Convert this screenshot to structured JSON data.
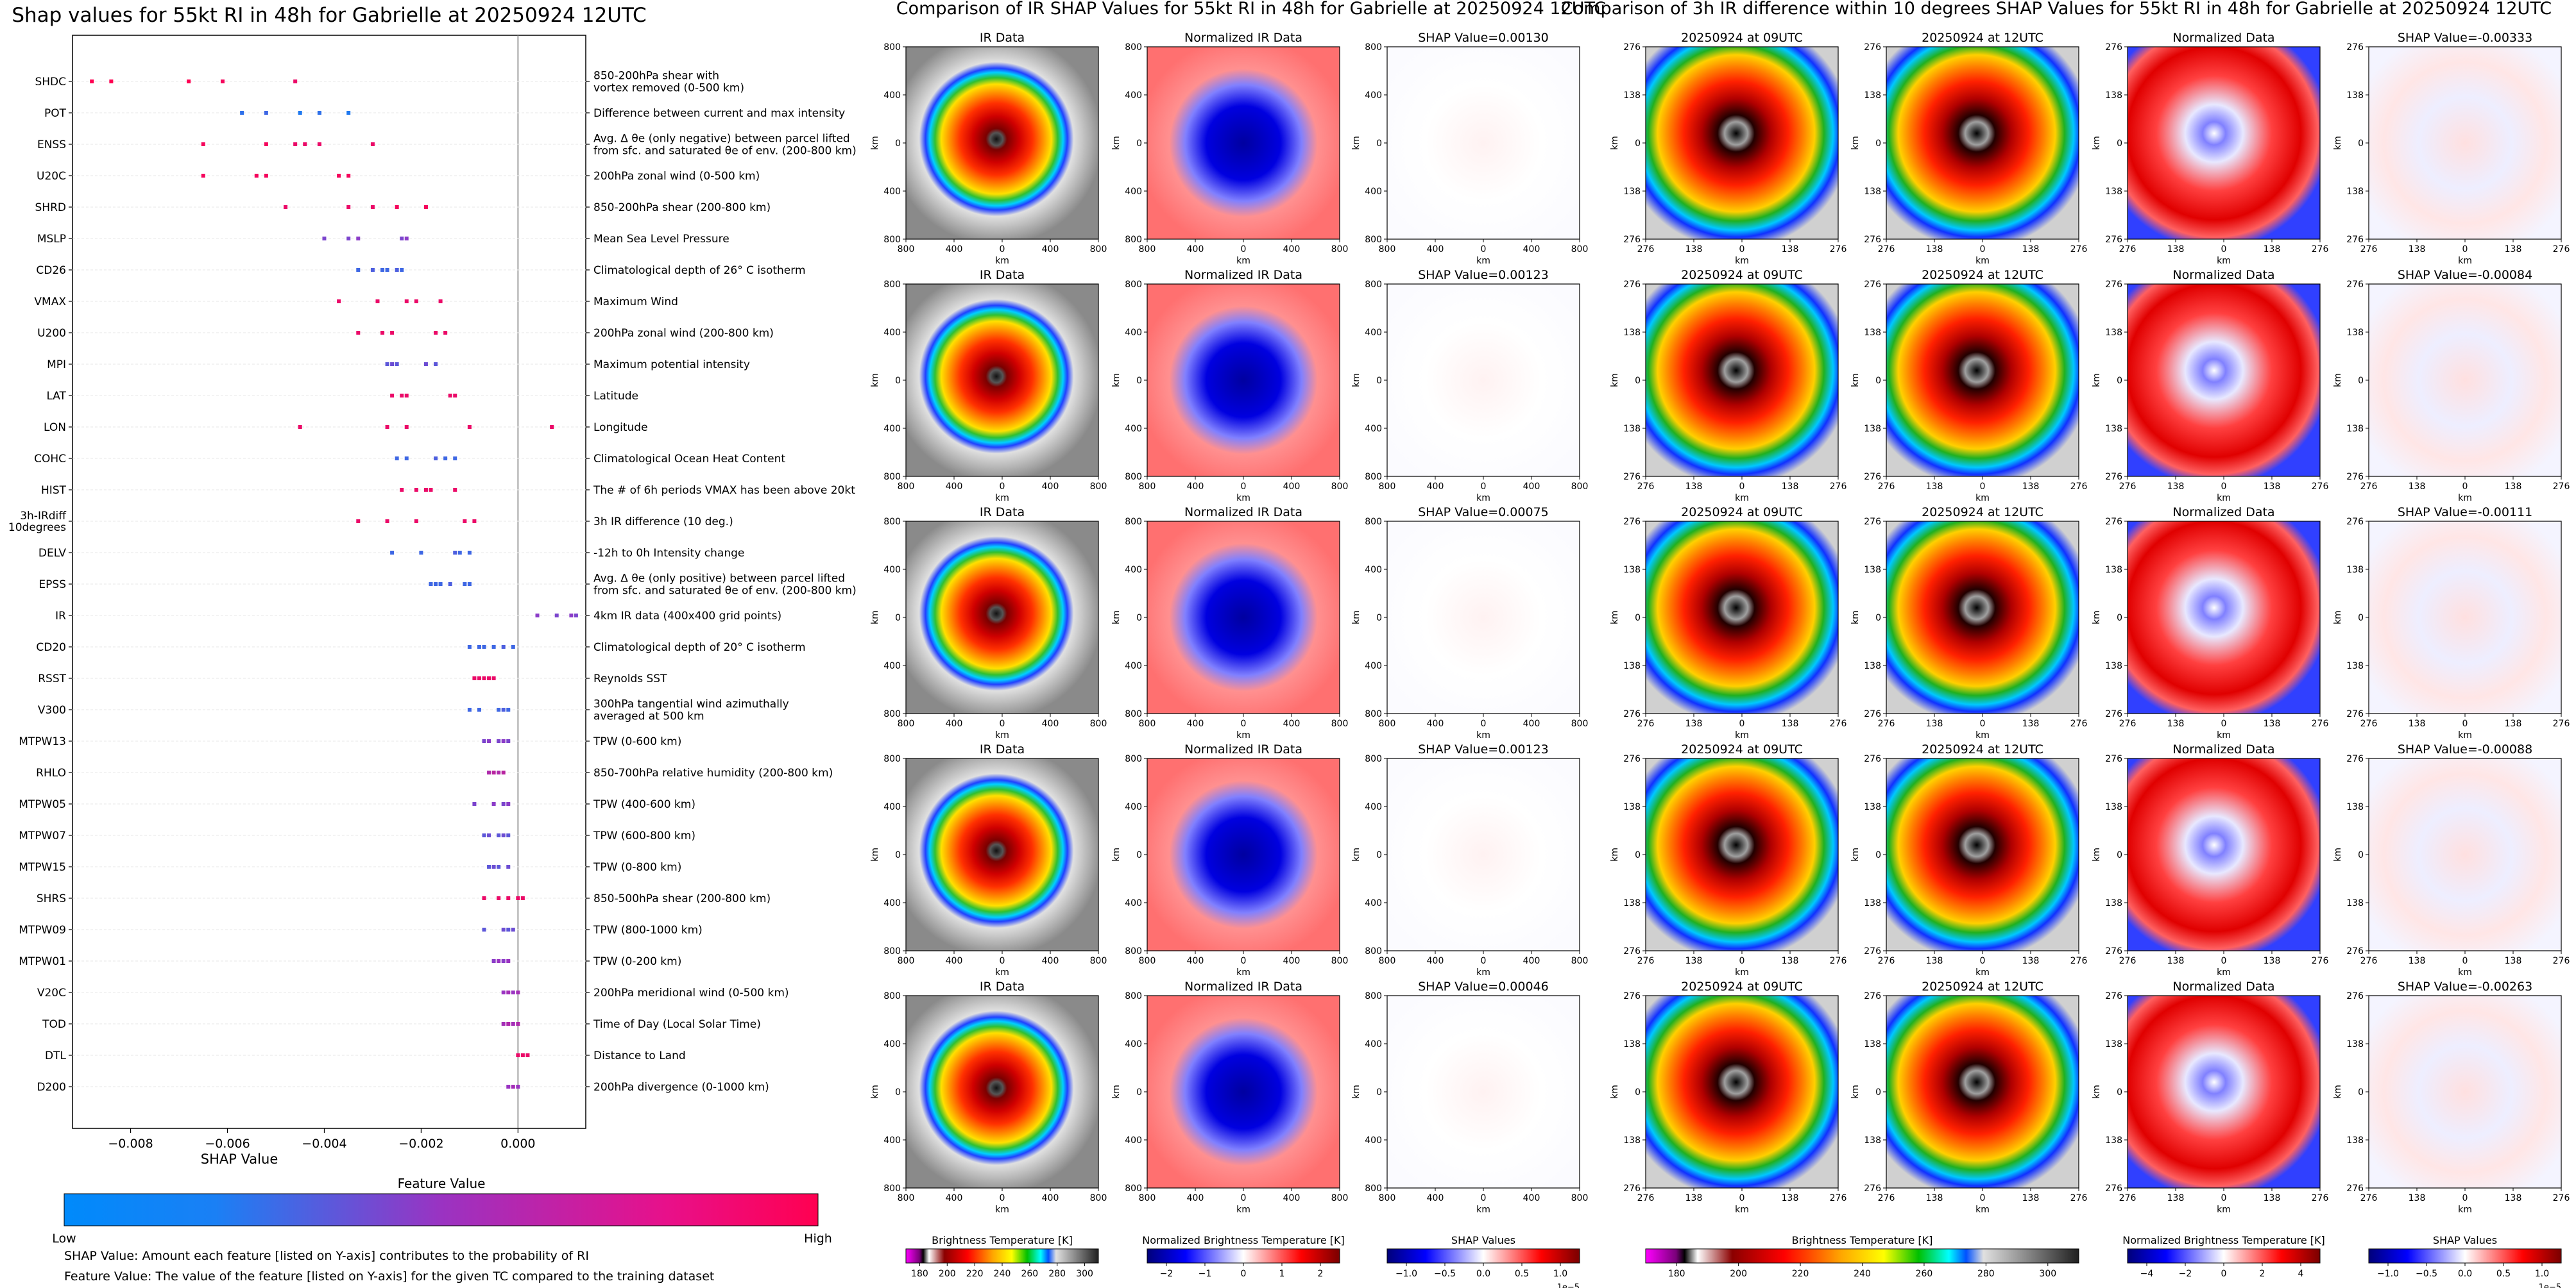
{
  "colors": {
    "low": "#008afb",
    "high": "#ff0051",
    "cbar_blue": "#0000ff",
    "cbar_red": "#ff0000"
  },
  "left_panel": {
    "title": "Shap values for 55kt RI in 48h for Gabrielle at 20250924 12UTC",
    "xlabel": "SHAP Value",
    "xticks": [
      "−0.008",
      "−0.006",
      "−0.004",
      "−0.002",
      "0.000"
    ],
    "colorbar_title": "Feature Value",
    "colorbar_low": "Low",
    "colorbar_high": "High",
    "footnote_1": "SHAP Value: Amount each feature [listed on Y-axis] contributes to the probability of RI",
    "footnote_2": "Feature Value: The value of the feature [listed on Y-axis] for the given TC compared to the training dataset"
  },
  "chart_data": [
    {
      "type": "scatter",
      "title": "Shap values for 55kt RI in 48h for Gabrielle at 20250924 12UTC",
      "xlabel": "SHAP Value",
      "xlim": [
        -0.0092,
        0.0014
      ],
      "xticks": [
        -0.008,
        -0.006,
        -0.004,
        -0.002,
        0.0
      ],
      "features": [
        {
          "name": "SHDC",
          "desc": "850-200hPa shear with\nvortex removed (0-500 km)",
          "points": [
            [
              -0.0088,
              1.0
            ],
            [
              -0.0084,
              1.0
            ],
            [
              -0.0068,
              1.0
            ],
            [
              -0.0061,
              0.95
            ],
            [
              -0.0046,
              0.9
            ]
          ]
        },
        {
          "name": "POT",
          "desc": "Difference between current and max intensity",
          "points": [
            [
              -0.0057,
              0.15
            ],
            [
              -0.0052,
              0.2
            ],
            [
              -0.0045,
              0.1
            ],
            [
              -0.0041,
              0.15
            ],
            [
              -0.0035,
              0.1
            ]
          ]
        },
        {
          "name": "ENSS",
          "desc": "Avg. Δ θe (only negative) between parcel lifted\nfrom sfc. and saturated θe of env. (200-800 km)",
          "points": [
            [
              -0.0065,
              0.95
            ],
            [
              -0.0052,
              0.95
            ],
            [
              -0.0046,
              0.9
            ],
            [
              -0.0044,
              0.9
            ],
            [
              -0.0041,
              0.9
            ],
            [
              -0.003,
              0.9
            ]
          ]
        },
        {
          "name": "U20C",
          "desc": "200hPa zonal wind (0-500 km)",
          "points": [
            [
              -0.0065,
              0.95
            ],
            [
              -0.0054,
              0.95
            ],
            [
              -0.0052,
              0.95
            ],
            [
              -0.0037,
              0.95
            ],
            [
              -0.0035,
              0.95
            ]
          ]
        },
        {
          "name": "SHRD",
          "desc": "850-200hPa shear (200-800 km)",
          "points": [
            [
              -0.0048,
              0.9
            ],
            [
              -0.0035,
              0.9
            ],
            [
              -0.003,
              0.9
            ],
            [
              -0.0025,
              0.95
            ],
            [
              -0.0019,
              0.95
            ]
          ]
        },
        {
          "name": "MSLP",
          "desc": "Mean Sea Level Pressure",
          "points": [
            [
              -0.004,
              0.4
            ],
            [
              -0.0035,
              0.4
            ],
            [
              -0.0033,
              0.45
            ],
            [
              -0.0024,
              0.4
            ],
            [
              -0.0023,
              0.45
            ]
          ]
        },
        {
          "name": "CD26",
          "desc": "Climatological depth of 26° C isotherm",
          "points": [
            [
              -0.0033,
              0.2
            ],
            [
              -0.003,
              0.25
            ],
            [
              -0.0028,
              0.2
            ],
            [
              -0.0027,
              0.2
            ],
            [
              -0.0025,
              0.25
            ],
            [
              -0.0024,
              0.2
            ]
          ]
        },
        {
          "name": "VMAX",
          "desc": "Maximum Wind",
          "points": [
            [
              -0.0037,
              0.9
            ],
            [
              -0.0029,
              0.9
            ],
            [
              -0.0023,
              0.9
            ],
            [
              -0.0021,
              0.9
            ],
            [
              -0.0016,
              0.9
            ]
          ]
        },
        {
          "name": "U200",
          "desc": "200hPa zonal wind (200-800 km)",
          "points": [
            [
              -0.0033,
              0.9
            ],
            [
              -0.0028,
              0.9
            ],
            [
              -0.0026,
              0.9
            ],
            [
              -0.0017,
              0.9
            ],
            [
              -0.0015,
              0.9
            ]
          ]
        },
        {
          "name": "MPI",
          "desc": "Maximum potential intensity",
          "points": [
            [
              -0.0027,
              0.3
            ],
            [
              -0.0026,
              0.35
            ],
            [
              -0.0025,
              0.3
            ],
            [
              -0.0019,
              0.35
            ],
            [
              -0.0017,
              0.3
            ]
          ]
        },
        {
          "name": "LAT",
          "desc": "Latitude",
          "points": [
            [
              -0.0026,
              0.9
            ],
            [
              -0.0024,
              0.9
            ],
            [
              -0.0023,
              0.9
            ],
            [
              -0.0014,
              0.9
            ],
            [
              -0.0013,
              0.9
            ]
          ]
        },
        {
          "name": "LON",
          "desc": "Longitude",
          "points": [
            [
              -0.0045,
              0.9
            ],
            [
              -0.0027,
              0.9
            ],
            [
              -0.0023,
              0.9
            ],
            [
              -0.001,
              0.9
            ],
            [
              0.0007,
              0.9
            ]
          ]
        },
        {
          "name": "COHC",
          "desc": "Climatological Ocean Heat Content",
          "points": [
            [
              -0.0025,
              0.2
            ],
            [
              -0.0023,
              0.2
            ],
            [
              -0.0017,
              0.25
            ],
            [
              -0.0015,
              0.2
            ],
            [
              -0.0013,
              0.2
            ]
          ]
        },
        {
          "name": "HIST",
          "desc": "The # of 6h periods VMAX has been above 20kt",
          "points": [
            [
              -0.0024,
              0.9
            ],
            [
              -0.0021,
              0.9
            ],
            [
              -0.0019,
              0.9
            ],
            [
              -0.0018,
              0.9
            ],
            [
              -0.0013,
              0.9
            ]
          ]
        },
        {
          "name": "3h-IRdiff\n10degrees",
          "desc": "3h IR difference (10 deg.)",
          "points": [
            [
              -0.0033,
              0.9
            ],
            [
              -0.0027,
              0.9
            ],
            [
              -0.0021,
              0.9
            ],
            [
              -0.0011,
              0.9
            ],
            [
              -0.0009,
              0.9
            ]
          ]
        },
        {
          "name": "DELV",
          "desc": "-12h to 0h Intensity change",
          "points": [
            [
              -0.0026,
              0.2
            ],
            [
              -0.002,
              0.2
            ],
            [
              -0.0013,
              0.25
            ],
            [
              -0.0012,
              0.2
            ],
            [
              -0.001,
              0.2
            ]
          ]
        },
        {
          "name": "EPSS",
          "desc": "Avg. Δ θe (only positive) between parcel lifted\nfrom sfc. and saturated θe of env. (200-800 km)",
          "points": [
            [
              -0.0018,
              0.2
            ],
            [
              -0.0017,
              0.2
            ],
            [
              -0.0016,
              0.2
            ],
            [
              -0.0014,
              0.25
            ],
            [
              -0.0011,
              0.2
            ],
            [
              -0.001,
              0.2
            ]
          ]
        },
        {
          "name": "IR",
          "desc": "4km IR data (400x400 grid points)",
          "points": [
            [
              0.0004,
              0.45
            ],
            [
              0.0008,
              0.4
            ],
            [
              0.0011,
              0.45
            ],
            [
              0.0012,
              0.4
            ]
          ]
        },
        {
          "name": "CD20",
          "desc": "Climatological depth of 20° C isotherm",
          "points": [
            [
              -0.001,
              0.2
            ],
            [
              -0.0008,
              0.2
            ],
            [
              -0.0007,
              0.2
            ],
            [
              -0.0005,
              0.2
            ],
            [
              -0.0003,
              0.25
            ],
            [
              -0.0001,
              0.2
            ]
          ]
        },
        {
          "name": "RSST",
          "desc": "Reynolds SST",
          "points": [
            [
              -0.0009,
              0.9
            ],
            [
              -0.0008,
              0.9
            ],
            [
              -0.0007,
              0.9
            ],
            [
              -0.0006,
              0.9
            ],
            [
              -0.0005,
              0.9
            ]
          ]
        },
        {
          "name": "V300",
          "desc": "300hPa tangential wind azimuthally\naveraged at 500 km",
          "points": [
            [
              -0.001,
              0.2
            ],
            [
              -0.0008,
              0.2
            ],
            [
              -0.0004,
              0.2
            ],
            [
              -0.0003,
              0.25
            ],
            [
              -0.0002,
              0.2
            ]
          ]
        },
        {
          "name": "MTPW13",
          "desc": "TPW (0-600 km)",
          "points": [
            [
              -0.0007,
              0.4
            ],
            [
              -0.0006,
              0.45
            ],
            [
              -0.0004,
              0.4
            ],
            [
              -0.0003,
              0.45
            ],
            [
              -0.0002,
              0.4
            ]
          ]
        },
        {
          "name": "RHLO",
          "desc": "850-700hPa relative humidity (200-800 km)",
          "points": [
            [
              -0.0006,
              0.6
            ],
            [
              -0.0005,
              0.65
            ],
            [
              -0.0004,
              0.6
            ],
            [
              -0.0003,
              0.65
            ]
          ]
        },
        {
          "name": "MTPW05",
          "desc": "TPW (400-600 km)",
          "points": [
            [
              -0.0009,
              0.4
            ],
            [
              -0.0005,
              0.45
            ],
            [
              -0.0003,
              0.4
            ],
            [
              -0.0002,
              0.45
            ]
          ]
        },
        {
          "name": "MTPW07",
          "desc": "TPW (600-800 km)",
          "points": [
            [
              -0.0007,
              0.3
            ],
            [
              -0.0006,
              0.35
            ],
            [
              -0.0004,
              0.3
            ],
            [
              -0.0003,
              0.35
            ],
            [
              -0.0002,
              0.3
            ]
          ]
        },
        {
          "name": "MTPW15",
          "desc": "TPW (0-800 km)",
          "points": [
            [
              -0.0006,
              0.3
            ],
            [
              -0.0005,
              0.35
            ],
            [
              -0.0004,
              0.3
            ],
            [
              -0.0002,
              0.35
            ]
          ]
        },
        {
          "name": "SHRS",
          "desc": "850-500hPa shear (200-800 km)",
          "points": [
            [
              -0.0007,
              0.9
            ],
            [
              -0.0004,
              0.9
            ],
            [
              -0.0002,
              0.9
            ],
            [
              0.0,
              0.9
            ],
            [
              0.0001,
              0.9
            ]
          ]
        },
        {
          "name": "MTPW09",
          "desc": "TPW (800-1000 km)",
          "points": [
            [
              -0.0007,
              0.3
            ],
            [
              -0.0003,
              0.35
            ],
            [
              -0.0002,
              0.3
            ],
            [
              -0.0001,
              0.35
            ]
          ]
        },
        {
          "name": "MTPW01",
          "desc": "TPW (0-200 km)",
          "points": [
            [
              -0.0005,
              0.45
            ],
            [
              -0.0004,
              0.5
            ],
            [
              -0.0003,
              0.45
            ],
            [
              -0.0002,
              0.5
            ]
          ]
        },
        {
          "name": "V20C",
          "desc": "200hPa meridional wind (0-500 km)",
          "points": [
            [
              -0.0003,
              0.5
            ],
            [
              -0.0002,
              0.55
            ],
            [
              -0.0001,
              0.5
            ],
            [
              0.0,
              0.55
            ]
          ]
        },
        {
          "name": "TOD",
          "desc": "Time of Day (Local Solar Time)",
          "points": [
            [
              -0.0003,
              0.55
            ],
            [
              -0.0002,
              0.6
            ],
            [
              -0.0001,
              0.55
            ],
            [
              0.0,
              0.6
            ]
          ]
        },
        {
          "name": "DTL",
          "desc": "Distance to Land",
          "points": [
            [
              0.0,
              0.9
            ],
            [
              0.0001,
              0.9
            ],
            [
              0.0002,
              0.9
            ]
          ]
        },
        {
          "name": "D200",
          "desc": "200hPa divergence (0-1000 km)",
          "points": [
            [
              -0.0002,
              0.5
            ],
            [
              -0.0001,
              0.55
            ],
            [
              0.0,
              0.5
            ]
          ]
        }
      ]
    },
    {
      "type": "heatmap",
      "group_title": "Comparison of IR SHAP Values for 55kt RI in 48h for Gabrielle at 20250924 12UTC",
      "column_titles": [
        "IR Data",
        "Normalized IR Data"
      ],
      "shap_titles": [
        "SHAP Value=0.00130",
        "SHAP Value=0.00123",
        "SHAP Value=0.00075",
        "SHAP Value=0.00123",
        "SHAP Value=0.00046"
      ],
      "xlabel": "km",
      "ylabel": "km",
      "xticks": [
        "800",
        "400",
        "0",
        "400",
        "800"
      ],
      "yticks": [
        "800",
        "400",
        "0",
        "400",
        "800"
      ],
      "colorbars": [
        {
          "label": "Brightness Temperature [K]",
          "ticks": [
            "180",
            "200",
            "220",
            "240",
            "260",
            "280",
            "300"
          ]
        },
        {
          "label": "Normalized Brightness Temperature [K]",
          "ticks": [
            "−2",
            "−1",
            "0",
            "1",
            "2"
          ]
        },
        {
          "label": "SHAP Values",
          "ticks": [
            "−1.0",
            "−0.5",
            "0.0",
            "0.5",
            "1.0"
          ],
          "offset": "1e−5"
        }
      ]
    },
    {
      "type": "heatmap",
      "group_title": "Comparison of 3h IR difference within 10 degrees SHAP Values for 55kt RI in 48h for Gabrielle at 20250924 12UTC",
      "column_titles": [
        "20250924 at 09UTC",
        "20250924 at 12UTC",
        "Normalized Data"
      ],
      "shap_titles": [
        "SHAP Value=-0.00333",
        "SHAP Value=-0.00084",
        "SHAP Value=-0.00111",
        "SHAP Value=-0.00088",
        "SHAP Value=-0.00263"
      ],
      "xlabel": "km",
      "ylabel": "km",
      "xticks": [
        "276",
        "138",
        "0",
        "138",
        "276"
      ],
      "yticks": [
        "276",
        "138",
        "0",
        "138",
        "276"
      ],
      "colorbars": [
        {
          "label": "Brightness Temperature [K]",
          "ticks": [
            "180",
            "200",
            "220",
            "240",
            "260",
            "280",
            "300"
          ]
        },
        {
          "label": "Normalized Brightness Temperature [K]",
          "ticks": [
            "−4",
            "−2",
            "0",
            "2",
            "4"
          ]
        },
        {
          "label": "SHAP Values",
          "ticks": [
            "−1.0",
            "−0.5",
            "0.0",
            "0.5",
            "1.0"
          ],
          "offset": "1e−5"
        }
      ]
    }
  ]
}
